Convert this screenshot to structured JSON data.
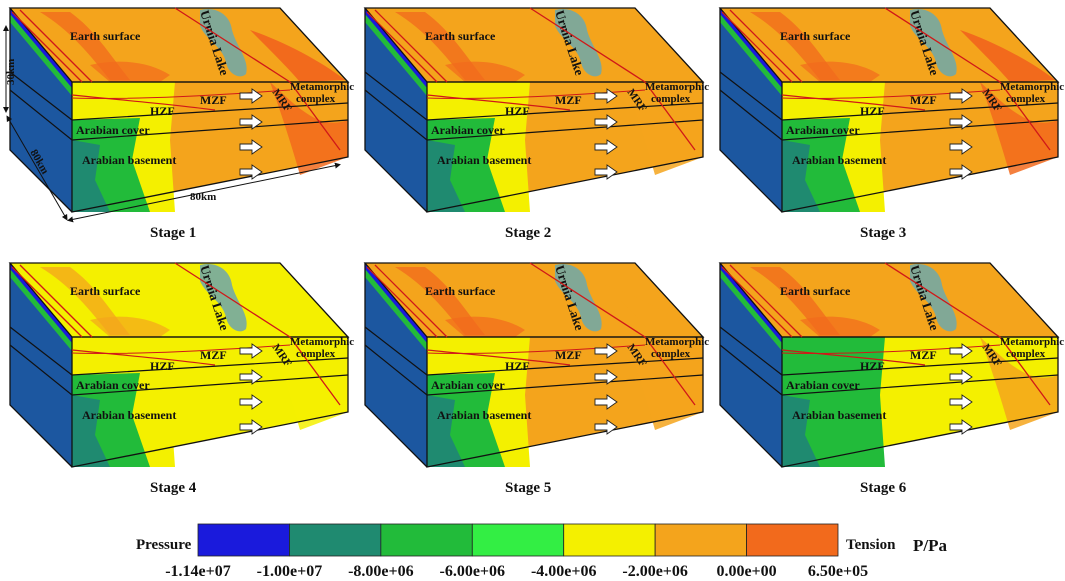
{
  "colors": {
    "blue": "#1a1adc",
    "teal": "#1f8a70",
    "green": "#22bb3a",
    "light_green": "#33ee44",
    "yellow": "#f4f000",
    "orange": "#f4a41c",
    "red_orange": "#f26a1c",
    "outline": "#111111",
    "fault": "#d01818",
    "lake": "#74a8a4",
    "lake_text": "#1a1aa0"
  },
  "labels": {
    "earth_surface": "Earth surface",
    "urmia_lake": "Urmia Lake",
    "metamorphic_1": "Metamorphic",
    "metamorphic_2": "complex",
    "mzf": "MZF",
    "mrf": "MRF",
    "hzf": "HZF",
    "arabian_cover": "Arabian cover",
    "arabian_basement": "Arabian basement"
  },
  "dimensions": {
    "depth": "30km",
    "width": "80km",
    "length": "80km"
  },
  "panels": [
    {
      "title": "Stage 1",
      "top": "orange",
      "front": [
        "teal",
        "green",
        "yellow",
        "orange"
      ],
      "hotspot": "red_orange"
    },
    {
      "title": "Stage 2",
      "top": "orange",
      "front": [
        "teal",
        "green",
        "yellow",
        "orange"
      ],
      "hotspot": "orange"
    },
    {
      "title": "Stage 3",
      "top": "orange",
      "front": [
        "teal",
        "green",
        "yellow",
        "orange"
      ],
      "hotspot": "red_orange"
    },
    {
      "title": "Stage 4",
      "top": "yellow",
      "front": [
        "teal",
        "green",
        "yellow",
        "yellow"
      ],
      "hotspot": "yellow"
    },
    {
      "title": "Stage 5",
      "top": "orange",
      "front": [
        "teal",
        "green",
        "yellow",
        "orange"
      ],
      "hotspot": "orange"
    },
    {
      "title": "Stage 6",
      "top": "orange",
      "front": [
        "teal",
        "green",
        "green",
        "yellow"
      ],
      "hotspot": "orange"
    }
  ],
  "legend": {
    "left_label": "Pressure",
    "right_label": "Tension",
    "unit": "P/Pa",
    "swatches": [
      "blue",
      "teal",
      "green",
      "light_green",
      "yellow",
      "orange",
      "red_orange"
    ],
    "ticks": [
      "-1.14e+07",
      "-1.00e+07",
      "-8.00e+06",
      "-6.00e+06",
      "-4.00e+06",
      "-2.00e+06",
      "0.00e+00",
      "6.50e+05"
    ]
  }
}
